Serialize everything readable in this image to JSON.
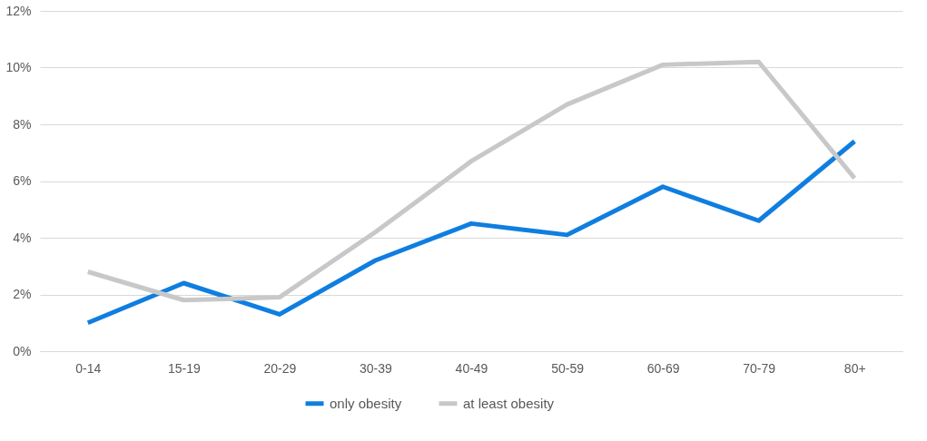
{
  "chart_data": {
    "type": "line",
    "categories": [
      "0-14",
      "15-19",
      "20-29",
      "30-39",
      "40-49",
      "50-59",
      "60-69",
      "70-79",
      "80+"
    ],
    "series": [
      {
        "name": "only obesity",
        "color": "#0f7ee0",
        "values": [
          1.0,
          2.4,
          1.3,
          3.2,
          4.5,
          4.1,
          5.8,
          4.6,
          7.4
        ]
      },
      {
        "name": "at least obesity",
        "color": "#c8c8c8",
        "values": [
          2.8,
          1.8,
          1.9,
          4.2,
          6.7,
          8.7,
          10.1,
          10.2,
          6.1
        ]
      }
    ],
    "ylim": [
      0,
      12
    ],
    "yticks": [
      {
        "value": 0,
        "label": "0%"
      },
      {
        "value": 2,
        "label": "2%"
      },
      {
        "value": 4,
        "label": "4%"
      },
      {
        "value": 6,
        "label": "6%"
      },
      {
        "value": 8,
        "label": "8%"
      },
      {
        "value": 10,
        "label": "10%"
      },
      {
        "value": 12,
        "label": "12%"
      }
    ],
    "grid": "y",
    "legend": "bottom",
    "marker": "none",
    "line_style": "solid"
  }
}
